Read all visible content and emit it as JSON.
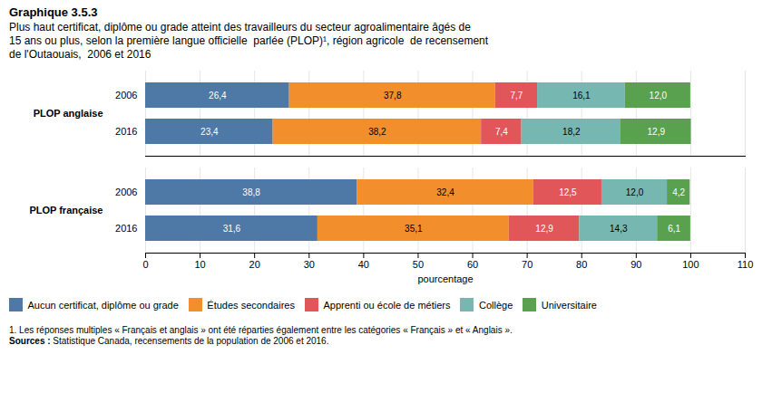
{
  "chart_data": {
    "type": "bar",
    "orientation": "horizontal",
    "stacked": true,
    "title": "Graphique 3.5.3",
    "subtitle": [
      "Plus haut certificat, diplôme ou grade atteint des travailleurs du secteur agroalimentaire âgés de",
      "15 ans ou plus, selon la première langue officielle  parlée (PLOP)¹, région agricole  de recensement",
      "de l'Outaouais,  2006 et 2016"
    ],
    "categories": [
      "2006",
      "2016",
      "2006",
      "2016"
    ],
    "groups": [
      "PLOP anglaise",
      "PLOP anglaise",
      "PLOP française",
      "PLOP française"
    ],
    "series": [
      {
        "name": "Aucun certificat, diplôme ou grade",
        "values": [
          26.4,
          23.4,
          38.8,
          31.6
        ],
        "value_labels": [
          "26,4",
          "23,4",
          "38,8",
          "31,6"
        ]
      },
      {
        "name": "Études secondaires",
        "values": [
          37.8,
          38.2,
          32.4,
          35.1
        ],
        "value_labels": [
          "37,8",
          "38,2",
          "32,4",
          "35,1"
        ]
      },
      {
        "name": "Apprenti ou école de métiers",
        "values": [
          7.7,
          7.4,
          12.5,
          12.9
        ],
        "value_labels": [
          "7,7",
          "7,4",
          "12,5",
          "12,9"
        ]
      },
      {
        "name": "Collège",
        "values": [
          16.1,
          18.2,
          12.0,
          14.3
        ],
        "value_labels": [
          "16,1",
          "18,2",
          "12,0",
          "14,3"
        ]
      },
      {
        "name": "Universitaire",
        "values": [
          12.0,
          12.9,
          4.2,
          6.1
        ],
        "value_labels": [
          "12,0",
          "12,9",
          "4,2",
          "6,1"
        ]
      }
    ],
    "xlabel": "pourcentage",
    "xlim": [
      0,
      110
    ],
    "xticks": [
      0,
      10,
      20,
      30,
      40,
      50,
      60,
      70,
      80,
      90,
      100,
      110
    ],
    "grid": true,
    "legend": "bottom",
    "data_labels": true,
    "footnote": "1. Les réponses multiples « Français et anglais » ont été réparties également entre les catégories « Français » et « Anglais ».",
    "source_label": "Sources :",
    "source": " Statistique Canada, recensements de la population de 2006 et 2016."
  }
}
